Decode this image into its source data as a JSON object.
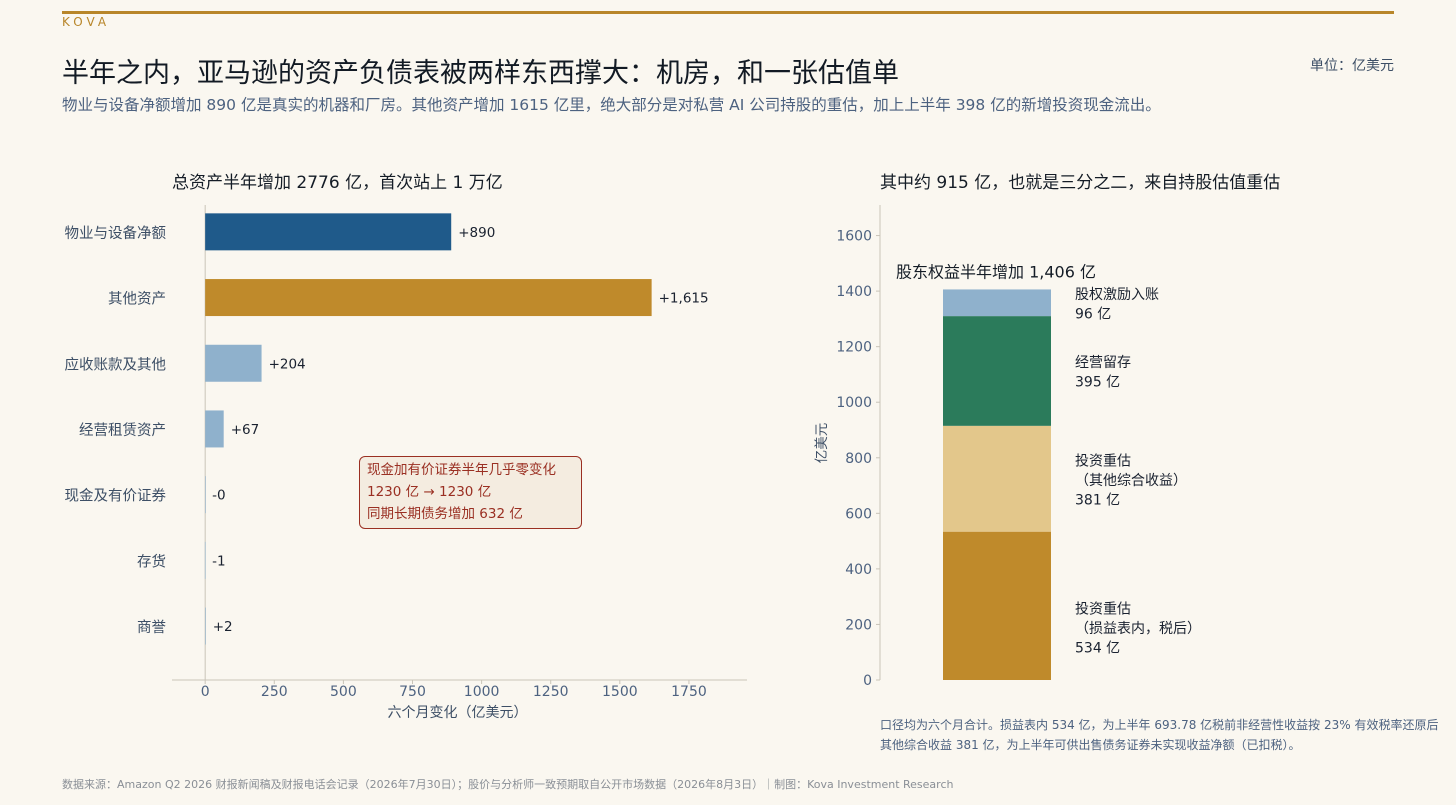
{
  "brand": "KOVA",
  "accent_color": "#b8862a",
  "title": "半年之内，亚马逊的资产负债表被两样东西撑大：机房，和一张估值单",
  "subtitle": "物业与设备净额增加 890 亿是真实的机器和厂房。其他资产增加 1615 亿里，绝大部分是对私营 AI 公司持股的重估，加上上半年 398 亿的新增投资现金流出。",
  "unit_label": "单位：亿美元",
  "left_panel_title": "总资产半年增加 2776 亿，首次站上 1 万亿",
  "right_panel_title": "其中约 915 亿，也就是三分之二，来自持股估值重估",
  "callout": {
    "line1": "现金加有价证券半年几乎零变化",
    "line2": "1230 亿 → 1230 亿",
    "line3": "同期长期债务增加 632 亿",
    "color": "#9a2f22"
  },
  "footnote": {
    "line1": "口径均为六个月合计。损益表内 534 亿，为上半年 693.78 亿税前非经营性收益按 23% 有效税率还原后",
    "line2": "其他综合收益 381 亿，为上半年可供出售债务证券未实现收益净额（已扣税）。"
  },
  "source": "数据来源：Amazon Q2 2026 财报新闻稿及财报电话会记录（2026年7月30日）；股价与分析师一致预期取自公开市场数据（2026年8月3日）｜制图：Kova Investment Research",
  "chart_data": [
    {
      "type": "bar",
      "orientation": "horizontal",
      "categories": [
        "物业与设备净额",
        "其他资产",
        "应收账款及其他",
        "经营租赁资产",
        "现金及有价证券",
        "存货",
        "商誉"
      ],
      "values": [
        890,
        1615,
        204,
        67,
        -0.2,
        -1,
        2
      ],
      "data_labels": [
        "+890",
        "+1,615",
        "+204",
        "+67",
        "-0",
        "-1",
        "+2"
      ],
      "colors": [
        "#1f5a8a",
        "#bf8a2b",
        "#8fb1cc",
        "#8fb1cc",
        "#8fb1cc",
        "#8fb1cc",
        "#8fb1cc"
      ],
      "xlabel": "六个月变化（亿美元）",
      "xlim": [
        -120,
        1960
      ],
      "xticks": [
        0,
        250,
        500,
        750,
        1000,
        1250,
        1500,
        1750
      ],
      "grid": false
    },
    {
      "type": "bar",
      "stacked": true,
      "total_label": "股东权益半年增加 1,406 亿",
      "ylabel": "亿美元",
      "ylim": [
        0,
        1700
      ],
      "yticks": [
        0,
        200,
        400,
        600,
        800,
        1000,
        1200,
        1400,
        1600
      ],
      "grid": false,
      "series": [
        {
          "name": "投资重估",
          "name2": "（损益表内，税后）",
          "value": 534,
          "value_label": "534 亿",
          "color": "#bf8a2b"
        },
        {
          "name": "投资重估",
          "name2": "（其他综合收益）",
          "value": 381,
          "value_label": "381 亿",
          "color": "#e3c78b"
        },
        {
          "name": "经营留存",
          "name2": "",
          "value": 395,
          "value_label": "395 亿",
          "color": "#2b7b5b"
        },
        {
          "name": "股权激励入账",
          "name2": "",
          "value": 96,
          "value_label": "96 亿",
          "color": "#8fb1cc"
        }
      ]
    }
  ]
}
